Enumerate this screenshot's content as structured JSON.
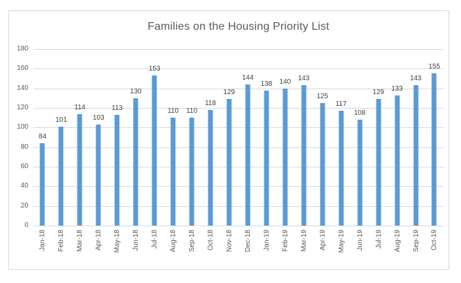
{
  "chart_data": {
    "type": "bar",
    "title": "Families on the Housing Priority List",
    "categories": [
      "Jan-18",
      "Feb-18",
      "Mar-18",
      "Apr-18",
      "May-18",
      "Jun-18",
      "Jul-18",
      "Aug-18",
      "Sep-18",
      "Oct-18",
      "Nov-18",
      "Dec-18",
      "Jan-19",
      "Feb-19",
      "Mar-19",
      "Apr-19",
      "May-19",
      "Jun-19",
      "Jul-19",
      "Aug-19",
      "Sep-19",
      "Oct-19"
    ],
    "values": [
      84,
      101,
      114,
      103,
      113,
      130,
      153,
      110,
      110,
      118,
      129,
      144,
      138,
      140,
      143,
      125,
      117,
      108,
      129,
      133,
      143,
      155
    ],
    "data_labels_shown": true,
    "xlabel": "",
    "ylabel": "",
    "ylim": [
      0,
      180
    ],
    "ytick_step": 20,
    "yticks": [
      0,
      20,
      40,
      60,
      80,
      100,
      120,
      140,
      160,
      180
    ],
    "grid": true,
    "legend_position": "none",
    "colors": {
      "bar": "#5b9bd5",
      "gridline": "#d9d9d9",
      "frame_border": "#d9d9d9",
      "axis_text": "#595959",
      "data_label_text": "#404040",
      "title_text": "#595959",
      "background": "#ffffff"
    }
  }
}
